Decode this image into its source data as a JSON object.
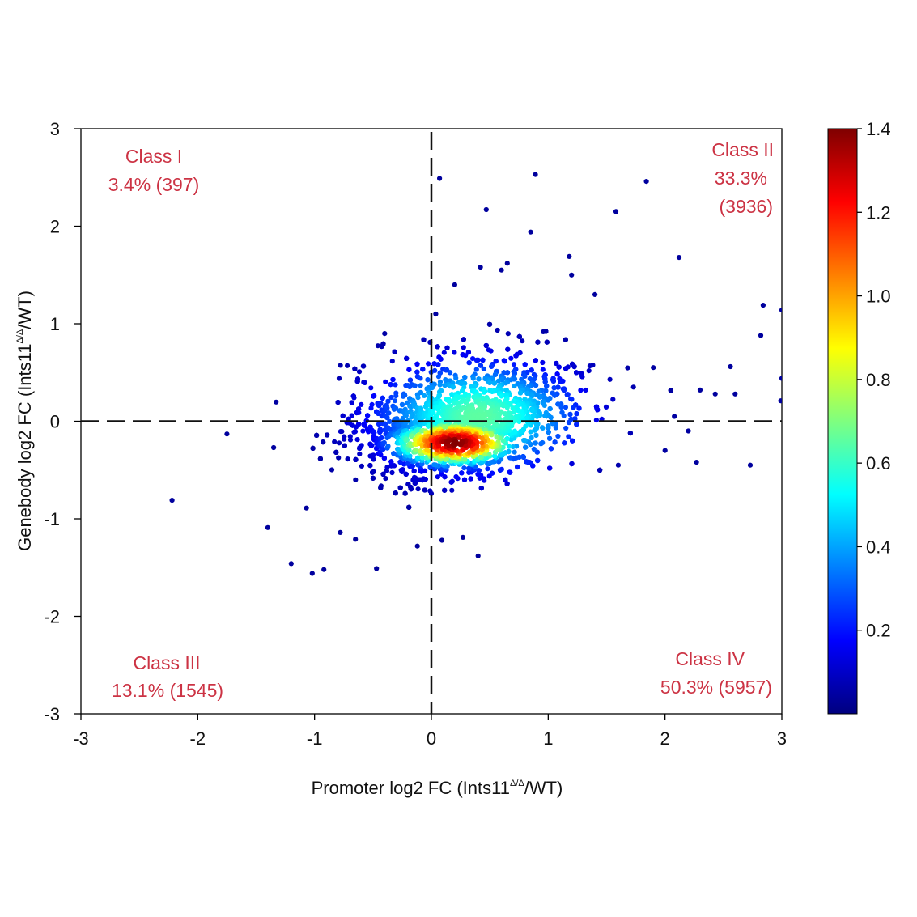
{
  "chart_data": {
    "type": "scatter",
    "subtype": "density-colored scatter",
    "xlabel_main": "Promoter log2 FC (Ints11",
    "ylabel_main": "Genebody log2 FC (Ints11",
    "label_superscript": "Δ/Δ",
    "label_suffix": "/WT)",
    "xlim": [
      -3,
      3
    ],
    "ylim": [
      -3,
      3
    ],
    "xticks": [
      "-3",
      "-2",
      "-1",
      "0",
      "1",
      "2",
      "3"
    ],
    "yticks": [
      "3",
      "2",
      "1",
      "0",
      "-1",
      "-2",
      "-3"
    ],
    "reference_lines": {
      "x": 0,
      "y": 0,
      "style": "dashed"
    },
    "quadrants": [
      {
        "name": "Class I",
        "percent": "3.4%",
        "count": "(397)"
      },
      {
        "name": "Class II",
        "percent": "33.3%",
        "count": "(3936)"
      },
      {
        "name": "Class III",
        "percent": "13.1%",
        "count": "(1545)"
      },
      {
        "name": "Class IV",
        "percent": "50.3%",
        "count": "(5957)"
      }
    ],
    "density_center": {
      "x": 0.2,
      "y": -0.22
    },
    "colorbar": {
      "min": 0,
      "max": 1.4,
      "ticks": [
        "0.2",
        "0.4",
        "0.6",
        "0.8",
        "1.0",
        "1.2",
        "1.4"
      ],
      "colormap": [
        "#00007f",
        "#0000ff",
        "#007fff",
        "#00ffff",
        "#7fff7f",
        "#ffff00",
        "#ff7f00",
        "#ff0000",
        "#7f0000"
      ]
    },
    "outlier_points": [
      [
        -2.22,
        -0.81
      ],
      [
        -1.75,
        -0.13
      ],
      [
        -1.4,
        -1.09
      ],
      [
        -1.35,
        -0.27
      ],
      [
        -1.2,
        -1.46
      ],
      [
        -1.02,
        -1.56
      ],
      [
        -0.92,
        -1.52
      ],
      [
        -0.47,
        -1.51
      ],
      [
        0.4,
        -1.38
      ],
      [
        0.07,
        2.49
      ],
      [
        0.89,
        2.53
      ],
      [
        0.47,
        2.17
      ],
      [
        1.84,
        2.46
      ],
      [
        1.58,
        2.15
      ],
      [
        2.12,
        1.68
      ],
      [
        0.85,
        1.94
      ],
      [
        2.84,
        1.19
      ],
      [
        3.0,
        1.14
      ],
      [
        2.82,
        0.88
      ],
      [
        2.56,
        0.56
      ],
      [
        2.73,
        -0.45
      ],
      [
        3.0,
        0.44
      ],
      [
        2.43,
        0.28
      ],
      [
        2.99,
        0.21
      ],
      [
        2.27,
        -0.42
      ],
      [
        1.18,
        1.69
      ],
      [
        0.65,
        1.62
      ],
      [
        0.42,
        1.58
      ],
      [
        1.73,
        0.35
      ],
      [
        2.08,
        0.05
      ],
      [
        2.3,
        0.32
      ],
      [
        -0.72,
        0.57
      ],
      [
        -0.79,
        0.44
      ],
      [
        -0.12,
        -1.28
      ],
      [
        0.09,
        -1.22
      ],
      [
        0.27,
        -1.19
      ],
      [
        -0.78,
        -1.14
      ],
      [
        -1.07,
        -0.89
      ],
      [
        -0.65,
        -1.21
      ],
      [
        -0.58,
        0.4
      ],
      [
        1.9,
        0.55
      ],
      [
        1.6,
        -0.45
      ],
      [
        2.0,
        -0.3
      ],
      [
        1.2,
        1.5
      ],
      [
        1.4,
        1.3
      ],
      [
        0.2,
        1.4
      ],
      [
        -0.4,
        0.9
      ],
      [
        0.6,
        1.55
      ],
      [
        2.2,
        -0.1
      ],
      [
        2.6,
        0.28
      ]
    ]
  }
}
